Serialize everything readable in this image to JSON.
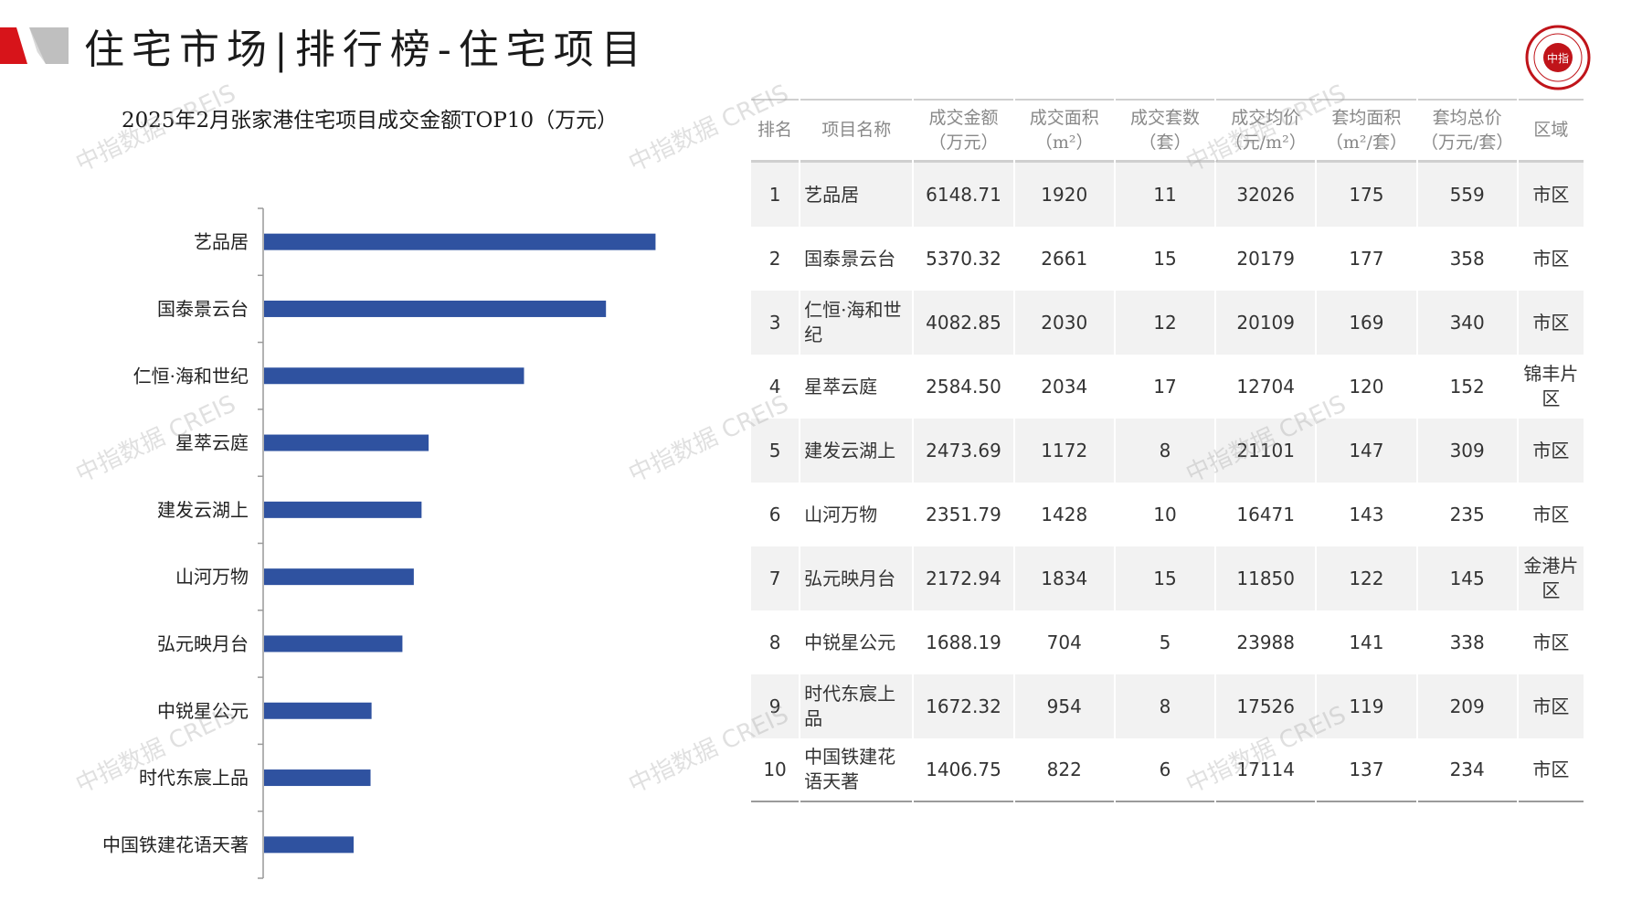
{
  "header": {
    "title": "住宅市场|排行榜-住宅项目"
  },
  "chart_data": {
    "type": "bar",
    "orientation": "horizontal",
    "title": "2025年2月张家港住宅项目成交金额TOP10（万元）",
    "categories": [
      "艺品居",
      "国泰景云台",
      "仁恒·海和世纪",
      "星萃云庭",
      "建发云湖上",
      "山河万物",
      "弘元映月台",
      "中锐星公元",
      "时代东宸上品",
      "中国铁建花语天著"
    ],
    "values": [
      6148.71,
      5370.32,
      4082.85,
      2584.5,
      2473.69,
      2351.79,
      2172.94,
      1688.19,
      1672.32,
      1406.75
    ],
    "xlim": [
      0,
      6200
    ],
    "bar_color": "#2f52a0",
    "grid": false
  },
  "table": {
    "headers": [
      [
        "排名",
        ""
      ],
      [
        "项目名称",
        ""
      ],
      [
        "成交金额",
        "（万元）"
      ],
      [
        "成交面积",
        "（m²）"
      ],
      [
        "成交套数",
        "（套）"
      ],
      [
        "成交均价",
        "（元/m²）"
      ],
      [
        "套均面积",
        "（m²/套）"
      ],
      [
        "套均总价",
        "（万元/套）"
      ],
      [
        "区域",
        ""
      ]
    ],
    "rows": [
      {
        "rank": "1",
        "name": "艺品居",
        "amount": "6148.71",
        "area": "1920",
        "units": "11",
        "avg_price": "32026",
        "avg_area": "175",
        "avg_total": "559",
        "region": "市区"
      },
      {
        "rank": "2",
        "name": "国泰景云台",
        "amount": "5370.32",
        "area": "2661",
        "units": "15",
        "avg_price": "20179",
        "avg_area": "177",
        "avg_total": "358",
        "region": "市区"
      },
      {
        "rank": "3",
        "name": "仁恒·海和世纪",
        "amount": "4082.85",
        "area": "2030",
        "units": "12",
        "avg_price": "20109",
        "avg_area": "169",
        "avg_total": "340",
        "region": "市区"
      },
      {
        "rank": "4",
        "name": "星萃云庭",
        "amount": "2584.50",
        "area": "2034",
        "units": "17",
        "avg_price": "12704",
        "avg_area": "120",
        "avg_total": "152",
        "region": "锦丰片区"
      },
      {
        "rank": "5",
        "name": "建发云湖上",
        "amount": "2473.69",
        "area": "1172",
        "units": "8",
        "avg_price": "21101",
        "avg_area": "147",
        "avg_total": "309",
        "region": "市区"
      },
      {
        "rank": "6",
        "name": "山河万物",
        "amount": "2351.79",
        "area": "1428",
        "units": "10",
        "avg_price": "16471",
        "avg_area": "143",
        "avg_total": "235",
        "region": "市区"
      },
      {
        "rank": "7",
        "name": "弘元映月台",
        "amount": "2172.94",
        "area": "1834",
        "units": "15",
        "avg_price": "11850",
        "avg_area": "122",
        "avg_total": "145",
        "region": "金港片区"
      },
      {
        "rank": "8",
        "name": "中锐星公元",
        "amount": "1688.19",
        "area": "704",
        "units": "5",
        "avg_price": "23988",
        "avg_area": "141",
        "avg_total": "338",
        "region": "市区"
      },
      {
        "rank": "9",
        "name": "时代东宸上品",
        "amount": "1672.32",
        "area": "954",
        "units": "8",
        "avg_price": "17526",
        "avg_area": "119",
        "avg_total": "209",
        "region": "市区"
      },
      {
        "rank": "10",
        "name": "中国铁建花语天著",
        "amount": "1406.75",
        "area": "822",
        "units": "6",
        "avg_price": "17114",
        "avg_area": "137",
        "avg_total": "234",
        "region": "市区"
      }
    ]
  },
  "watermark": {
    "text": "中指数据 CREIS"
  },
  "logo": {
    "text": "中指"
  },
  "colors": {
    "brand_red": "#d7141a",
    "bar_blue": "#2f52a0",
    "row_shade": "#f2f2f2"
  }
}
